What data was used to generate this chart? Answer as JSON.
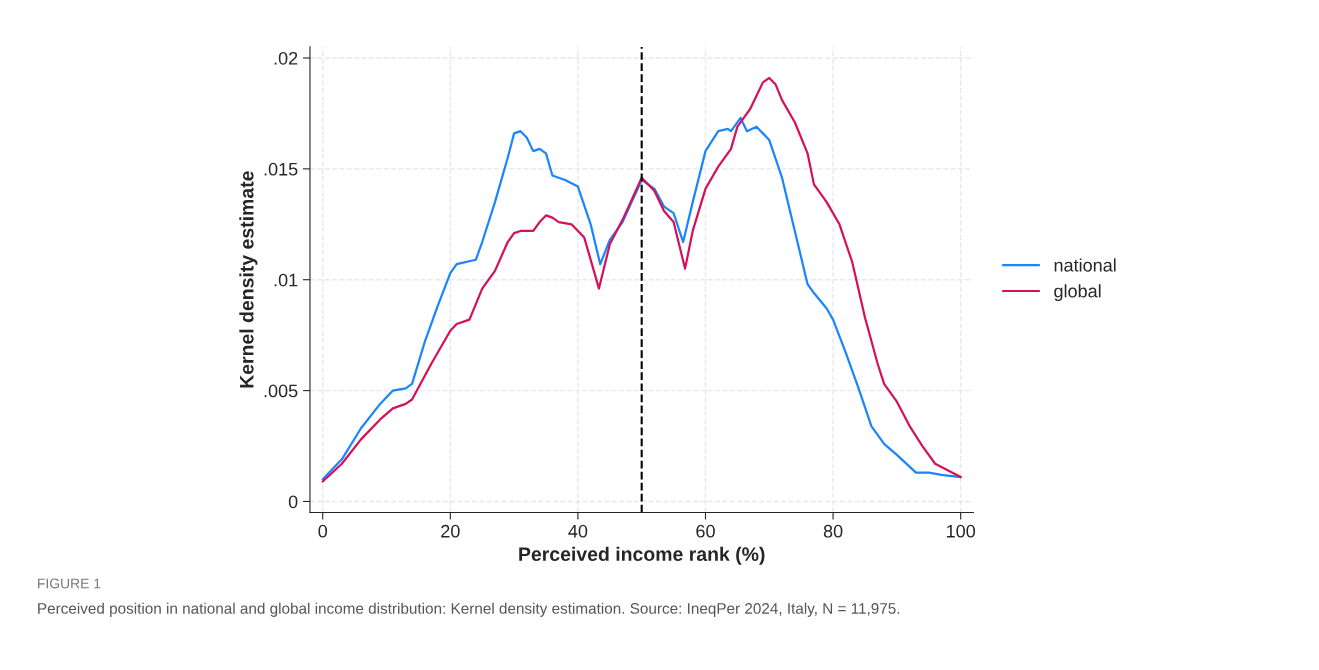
{
  "chart_data": {
    "type": "line",
    "xlabel": "Perceived income rank (%)",
    "ylabel": "Kernel density estimate",
    "xlim": [
      -2,
      102
    ],
    "ylim": [
      -0.0005,
      0.0205
    ],
    "xticks": [
      0,
      20,
      40,
      60,
      80,
      100
    ],
    "yticks": [
      {
        "value": 0,
        "label": "0"
      },
      {
        "value": 0.005,
        "label": ".005"
      },
      {
        "value": 0.01,
        "label": ".01"
      },
      {
        "value": 0.015,
        "label": ".015"
      },
      {
        "value": 0.02,
        "label": ".02"
      }
    ],
    "grid": true,
    "legend": "right",
    "line_style": "solid",
    "ref_lines": [
      {
        "axis": "x",
        "value": 50,
        "color": "#000000",
        "line_style": "dashed"
      }
    ],
    "annotations": [
      "FIGURE 1",
      "Perceived position in national and global income distribution: Kernel density estimation. Source: IneqPer 2024, Italy, N = 11,975."
    ],
    "series": [
      {
        "name": "national",
        "color": "#1a85ff",
        "x": [
          0,
          3,
          6,
          9,
          11,
          13,
          14,
          16,
          18,
          20,
          21,
          24,
          25,
          27,
          29,
          30,
          31,
          32,
          33,
          34,
          35,
          36,
          38,
          40,
          42,
          43.5,
          45,
          47,
          50,
          52,
          53.5,
          55,
          56.5,
          58,
          60,
          62,
          63.5,
          64,
          65.5,
          66.5,
          68,
          70,
          72,
          74,
          76,
          77,
          79,
          80,
          82,
          84,
          86,
          88,
          90,
          93,
          95,
          97,
          100
        ],
        "values": [
          0.001,
          0.0019,
          0.0033,
          0.0044,
          0.005,
          0.0051,
          0.0053,
          0.0072,
          0.0088,
          0.0103,
          0.0107,
          0.0109,
          0.0117,
          0.0135,
          0.0155,
          0.0166,
          0.0167,
          0.0164,
          0.0158,
          0.0159,
          0.0157,
          0.0147,
          0.0145,
          0.0142,
          0.0125,
          0.0107,
          0.0118,
          0.0126,
          0.0145,
          0.0141,
          0.0133,
          0.013,
          0.0117,
          0.0135,
          0.0158,
          0.0167,
          0.0168,
          0.0167,
          0.0173,
          0.0167,
          0.0169,
          0.0163,
          0.0146,
          0.0122,
          0.0098,
          0.0094,
          0.0087,
          0.0082,
          0.0067,
          0.0051,
          0.0034,
          0.0026,
          0.0021,
          0.0013,
          0.0013,
          0.0012,
          0.0011
        ]
      },
      {
        "name": "global",
        "color": "#d41159",
        "x": [
          0,
          3,
          6,
          9,
          11,
          13,
          14,
          17,
          20,
          21,
          23,
          25,
          27,
          29,
          30,
          31,
          32,
          33,
          34,
          35,
          36,
          37,
          39,
          41,
          43.3,
          45,
          47,
          50,
          52,
          53.5,
          55,
          56.8,
          58,
          60,
          62,
          64,
          65,
          66,
          67,
          68,
          69,
          70,
          71,
          72,
          74,
          76,
          77,
          79,
          81,
          83,
          85,
          87,
          88,
          90,
          92,
          94,
          96,
          100
        ],
        "values": [
          0.0009,
          0.0017,
          0.0028,
          0.0037,
          0.0042,
          0.0044,
          0.0046,
          0.0062,
          0.0077,
          0.008,
          0.0082,
          0.0096,
          0.0104,
          0.0117,
          0.0121,
          0.0122,
          0.0122,
          0.0122,
          0.0126,
          0.0129,
          0.0128,
          0.0126,
          0.0125,
          0.0119,
          0.0096,
          0.0116,
          0.0127,
          0.0146,
          0.014,
          0.0131,
          0.0126,
          0.0105,
          0.0122,
          0.0141,
          0.0151,
          0.0159,
          0.0169,
          0.0173,
          0.0177,
          0.0183,
          0.0189,
          0.0191,
          0.0188,
          0.0181,
          0.0171,
          0.0157,
          0.0143,
          0.0135,
          0.0125,
          0.0108,
          0.0083,
          0.0062,
          0.0053,
          0.0045,
          0.0034,
          0.0025,
          0.0017,
          0.0011
        ]
      }
    ]
  }
}
